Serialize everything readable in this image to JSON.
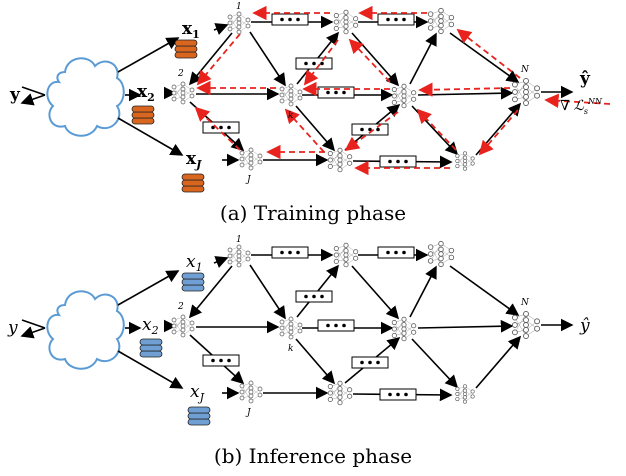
{
  "training": {
    "caption": "(a) Training phase",
    "input": "y",
    "sources": [
      {
        "label": "x",
        "sub": "1"
      },
      {
        "label": "x",
        "sub": "2"
      },
      {
        "label": "x",
        "sub": "J"
      }
    ],
    "node_labels": [
      "1",
      "2",
      "k",
      "J",
      "N"
    ],
    "output": "ŷ",
    "gradient": {
      "symbol": "∇",
      "label": "ℒ",
      "sub": "s",
      "sup": "NN"
    }
  },
  "inference": {
    "caption": "(b) Inference phase",
    "input": "y",
    "sources": [
      {
        "label": "x",
        "sub": "1"
      },
      {
        "label": "x",
        "sub": "2"
      },
      {
        "label": "x",
        "sub": "J"
      }
    ],
    "node_labels": [
      "1",
      "2",
      "k",
      "J",
      "N"
    ],
    "output": "ŷ"
  }
}
